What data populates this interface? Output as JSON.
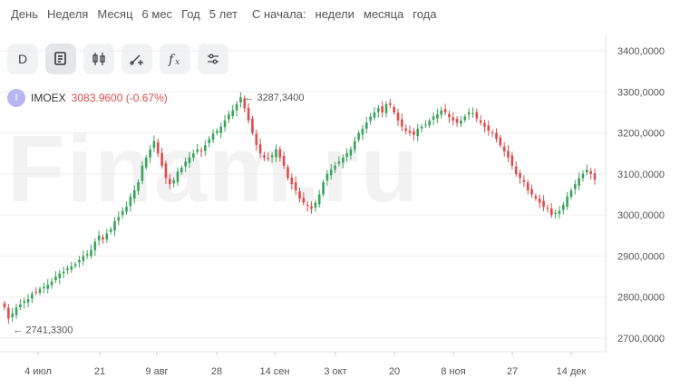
{
  "periods": [
    "День",
    "Неделя",
    "Месяц",
    "6 мес",
    "Год",
    "5 лет"
  ],
  "since_label": "С начала:",
  "since_options": [
    "недели",
    "месяца",
    "года"
  ],
  "toolbar": {
    "interval_label": "D",
    "buttons": [
      "interval",
      "chart-type",
      "candles",
      "drawing",
      "indicators",
      "settings"
    ]
  },
  "ticker": {
    "badge": "I",
    "name": "IMOEX",
    "price_change": "3083.9600 (-0.67%)"
  },
  "watermark": "Finam.ru",
  "colors": {
    "up": "#3aa35c",
    "down": "#e04b4b",
    "axis": "#555555",
    "grid": "#eeeeee"
  },
  "chart_data": {
    "type": "candlestick",
    "x_ticks": [
      "4 июл",
      "21",
      "9 авг",
      "28",
      "14 сен",
      "3 окт",
      "20",
      "8 ноя",
      "27",
      "14 дек"
    ],
    "y_ticks": [
      "3400,0000",
      "3300,0000",
      "3200,0000",
      "3100,0000",
      "3000,0000",
      "2900,0000",
      "2800,0000",
      "2700,0000"
    ],
    "ylim": [
      2670,
      3430
    ],
    "annotations": {
      "high": "3287,3400",
      "low": "2741,3300"
    },
    "last_value": 3083.96,
    "close_values": [
      2775,
      2748,
      2760,
      2775,
      2782,
      2790,
      2795,
      2808,
      2812,
      2820,
      2825,
      2830,
      2838,
      2850,
      2858,
      2862,
      2870,
      2875,
      2880,
      2890,
      2900,
      2905,
      2915,
      2935,
      2950,
      2940,
      2955,
      2965,
      2985,
      2995,
      3010,
      3020,
      3045,
      3060,
      3080,
      3120,
      3140,
      3160,
      3180,
      3150,
      3120,
      3090,
      3075,
      3085,
      3105,
      3115,
      3130,
      3140,
      3150,
      3160,
      3155,
      3170,
      3185,
      3198,
      3205,
      3215,
      3230,
      3245,
      3255,
      3270,
      3287,
      3260,
      3230,
      3200,
      3170,
      3150,
      3140,
      3138,
      3145,
      3160,
      3140,
      3120,
      3090,
      3075,
      3060,
      3040,
      3030,
      3022,
      3015,
      3030,
      3050,
      3080,
      3100,
      3110,
      3120,
      3130,
      3140,
      3150,
      3160,
      3180,
      3200,
      3210,
      3225,
      3240,
      3250,
      3260,
      3250,
      3270,
      3268,
      3250,
      3230,
      3215,
      3205,
      3200,
      3195,
      3210,
      3215,
      3220,
      3230,
      3240,
      3245,
      3255,
      3250,
      3238,
      3230,
      3225,
      3230,
      3240,
      3250,
      3248,
      3235,
      3225,
      3215,
      3205,
      3200,
      3185,
      3170,
      3155,
      3140,
      3120,
      3100,
      3090,
      3080,
      3060,
      3050,
      3040,
      3030,
      3020,
      3015,
      3000,
      3005,
      3010,
      3025,
      3045,
      3060,
      3075,
      3090,
      3100,
      3110,
      3100,
      3086
    ]
  }
}
